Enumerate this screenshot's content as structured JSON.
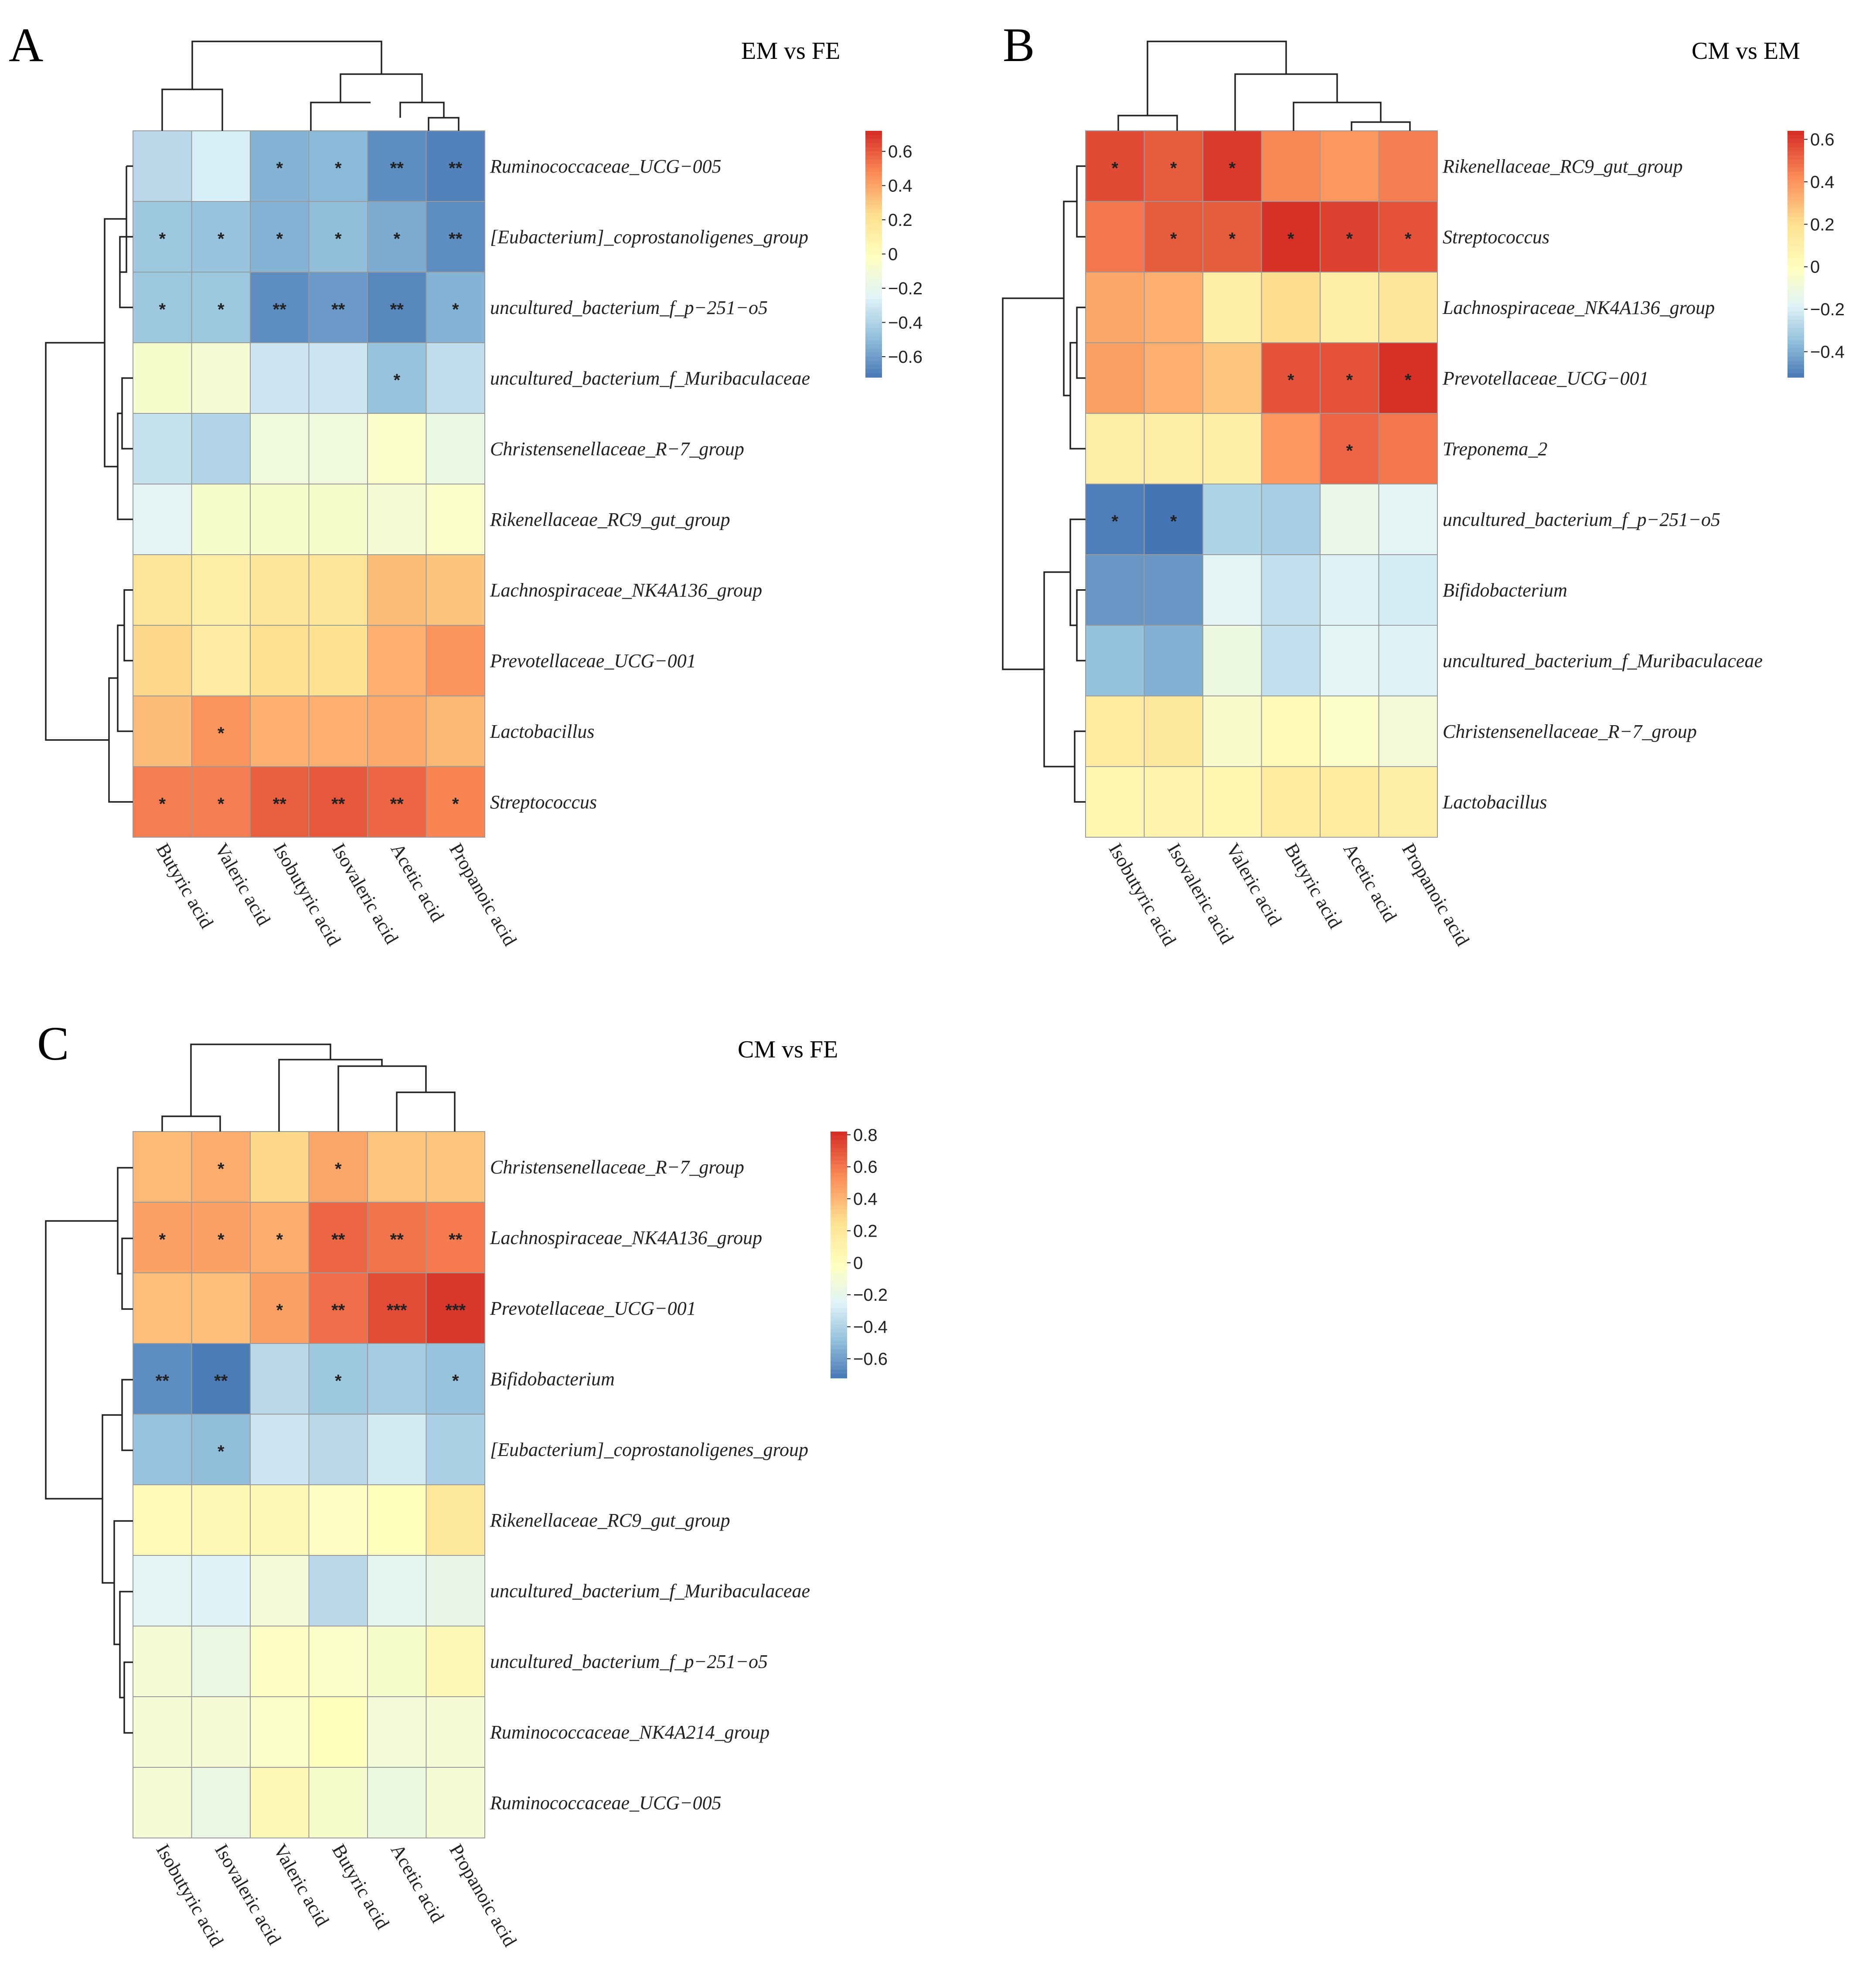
{
  "figure": {
    "colors": {
      "low": "#4575b4",
      "mid": "#ffffbf",
      "high": "#d73027"
    },
    "palette": [
      "#4575b4",
      "#91bfdb",
      "#e0f3f8",
      "#ffffbf",
      "#fee090",
      "#fc8d59",
      "#d73027"
    ]
  },
  "chart_data": [
    {
      "type": "heatmap",
      "panel": "A",
      "title": "EM vs FE",
      "rows": [
        "Ruminococcaceae_UCG−005",
        "[Eubacterium]_coprostanoligenes_group",
        "uncultured_bacterium_f_p−251−o5",
        "uncultured_bacterium_f_Muribaculaceae",
        "Christensenellaceae_R−7_group",
        "Rikenellaceae_RC9_gut_group",
        "Lachnospiraceae_NK4A136_group",
        "Prevotellaceae_UCG−001",
        "Lactobacillus",
        "Streptococcus"
      ],
      "columns": [
        "Butyric acid",
        "Valeric acid",
        "Isobutyric acid",
        "Isovaleric acid",
        "Acetic acid",
        "Propanoic acid"
      ],
      "values": [
        [
          -0.36,
          -0.26,
          -0.52,
          -0.5,
          -0.64,
          -0.68
        ],
        [
          -0.44,
          -0.46,
          -0.52,
          -0.48,
          -0.54,
          -0.64
        ],
        [
          -0.44,
          -0.44,
          -0.64,
          -0.6,
          -0.66,
          -0.52
        ],
        [
          -0.06,
          -0.08,
          -0.3,
          -0.3,
          -0.46,
          -0.34
        ],
        [
          -0.32,
          -0.38,
          -0.12,
          -0.12,
          -0.04,
          -0.16
        ],
        [
          -0.22,
          -0.06,
          -0.06,
          -0.06,
          -0.08,
          -0.04
        ],
        [
          0.2,
          0.14,
          0.2,
          0.2,
          0.34,
          0.32
        ],
        [
          0.26,
          0.16,
          0.24,
          0.22,
          0.38,
          0.46
        ],
        [
          0.34,
          0.46,
          0.38,
          0.38,
          0.4,
          0.36
        ],
        [
          0.52,
          0.52,
          0.6,
          0.62,
          0.58,
          0.5
        ]
      ],
      "significance": [
        [
          "",
          "",
          "*",
          "*",
          "**",
          "**"
        ],
        [
          "*",
          "*",
          "*",
          "*",
          "*",
          "**"
        ],
        [
          "*",
          "*",
          "**",
          "**",
          "**",
          "*"
        ],
        [
          "",
          "",
          "",
          "",
          "*",
          ""
        ],
        [
          "",
          "",
          "",
          "",
          "",
          ""
        ],
        [
          "",
          "",
          "",
          "",
          "",
          ""
        ],
        [
          "",
          "",
          "",
          "",
          "",
          ""
        ],
        [
          "",
          "",
          "",
          "",
          "",
          ""
        ],
        [
          "",
          "*",
          "",
          "",
          "",
          ""
        ],
        [
          "*",
          "*",
          "**",
          "**",
          "**",
          "*"
        ]
      ],
      "legend": {
        "ticks": [
          "0.6",
          "0.4",
          "0.2",
          "0",
          "−0.2",
          "−0.4",
          "−0.6"
        ],
        "tick_values": [
          0.6,
          0.4,
          0.2,
          0,
          -0.2,
          -0.4,
          -0.6
        ],
        "range": [
          -0.72,
          0.72
        ]
      }
    },
    {
      "type": "heatmap",
      "panel": "B",
      "title": "CM vs EM",
      "rows": [
        "Rikenellaceae_RC9_gut_group",
        "Streptococcus",
        "Lachnospiraceae_NK4A136_group",
        "Prevotellaceae_UCG−001",
        "Treponema_2",
        "uncultured_bacterium_f_p−251−o5",
        "Bifidobacterium",
        "uncultured_bacterium_f_Muribaculaceae",
        "Christensenellaceae_R−7_group",
        "Lactobacillus"
      ],
      "columns": [
        "Isobutyric acid",
        "Isovaleric acid",
        "Valeric acid",
        "Butyric acid",
        "Acetic acid",
        "Propanoic acid"
      ],
      "values": [
        [
          0.58,
          0.54,
          0.62,
          0.44,
          0.4,
          0.46
        ],
        [
          0.48,
          0.54,
          0.54,
          0.64,
          0.6,
          0.56
        ],
        [
          0.36,
          0.34,
          0.12,
          0.22,
          0.12,
          0.18
        ],
        [
          0.38,
          0.34,
          0.28,
          0.56,
          0.56,
          0.64
        ],
        [
          0.12,
          0.12,
          0.12,
          0.4,
          0.52,
          0.48
        ],
        [
          -0.5,
          -0.52,
          -0.28,
          -0.3,
          -0.12,
          -0.16
        ],
        [
          -0.44,
          -0.44,
          -0.16,
          -0.24,
          -0.18,
          -0.2
        ],
        [
          -0.34,
          -0.38,
          -0.1,
          -0.24,
          -0.16,
          -0.18
        ],
        [
          0.14,
          0.16,
          -0.04,
          0.04,
          -0.02,
          -0.08
        ],
        [
          0.06,
          0.08,
          0.06,
          0.14,
          0.14,
          0.12
        ]
      ],
      "significance": [
        [
          "*",
          "*",
          "*",
          "",
          "",
          ""
        ],
        [
          "",
          "*",
          "*",
          "*",
          "*",
          "*"
        ],
        [
          "",
          "",
          "",
          "",
          "",
          ""
        ],
        [
          "",
          "",
          "",
          "*",
          "*",
          "*"
        ],
        [
          "",
          "",
          "",
          "",
          "*",
          ""
        ],
        [
          "*",
          "*",
          "",
          "",
          "",
          ""
        ],
        [
          "",
          "",
          "",
          "",
          "",
          ""
        ],
        [
          "",
          "",
          "",
          "",
          "",
          ""
        ],
        [
          "",
          "",
          "",
          "",
          "",
          ""
        ],
        [
          "",
          "",
          "",
          "",
          "",
          ""
        ]
      ],
      "legend": {
        "ticks": [
          "0.6",
          "0.4",
          "0.2",
          "0",
          "−0.2",
          "−0.4"
        ],
        "tick_values": [
          0.6,
          0.4,
          0.2,
          0,
          -0.2,
          -0.4
        ],
        "range": [
          -0.52,
          0.64
        ]
      }
    },
    {
      "type": "heatmap",
      "panel": "C",
      "title": "CM vs FE",
      "rows": [
        "Christensenellaceae_R−7_group",
        "Lachnospiraceae_NK4A136_group",
        "Prevotellaceae_UCG−001",
        "Bifidobacterium",
        "[Eubacterium]_coprostanoligenes_group",
        "Rikenellaceae_RC9_gut_group",
        "uncultured_bacterium_f_Muribaculaceae",
        "uncultured_bacterium_f_p−251−o5",
        "Ruminococcaceae_NK4A214_group",
        "Ruminococcaceae_UCG−005"
      ],
      "columns": [
        "Isobutyric acid",
        "Isovaleric acid",
        "Valeric acid",
        "Butyric acid",
        "Acetic acid",
        "Propanoic acid"
      ],
      "values": [
        [
          0.4,
          0.44,
          0.3,
          0.46,
          0.36,
          0.36
        ],
        [
          0.48,
          0.48,
          0.44,
          0.66,
          0.62,
          0.6
        ],
        [
          0.38,
          0.38,
          0.48,
          0.64,
          0.74,
          0.8
        ],
        [
          -0.64,
          -0.7,
          -0.36,
          -0.44,
          -0.42,
          -0.46
        ],
        [
          -0.46,
          -0.48,
          -0.3,
          -0.36,
          -0.28,
          -0.4
        ],
        [
          0.04,
          0.06,
          0.06,
          -0.02,
          0.02,
          0.2
        ],
        [
          -0.22,
          -0.24,
          -0.1,
          -0.36,
          -0.2,
          -0.18
        ],
        [
          -0.08,
          -0.16,
          -0.02,
          -0.04,
          -0.06,
          0.06
        ],
        [
          -0.08,
          -0.08,
          -0.04,
          0.02,
          -0.1,
          -0.08
        ],
        [
          -0.08,
          -0.16,
          0.06,
          -0.06,
          -0.14,
          -0.08
        ]
      ],
      "significance": [
        [
          "",
          "*",
          "",
          "*",
          "",
          ""
        ],
        [
          "*",
          "*",
          "*",
          "**",
          "**",
          "**"
        ],
        [
          "",
          "",
          "*",
          "**",
          "***",
          "***"
        ],
        [
          "**",
          "**",
          "",
          "*",
          "",
          "*"
        ],
        [
          "",
          "*",
          "",
          "",
          "",
          ""
        ],
        [
          "",
          "",
          "",
          "",
          "",
          ""
        ],
        [
          "",
          "",
          "",
          "",
          "",
          ""
        ],
        [
          "",
          "",
          "",
          "",
          "",
          ""
        ],
        [
          "",
          "",
          "",
          "",
          "",
          ""
        ],
        [
          "",
          "",
          "",
          "",
          "",
          ""
        ]
      ],
      "legend": {
        "ticks": [
          "0.8",
          "0.6",
          "0.4",
          "0.2",
          "0",
          "−0.2",
          "−0.4",
          "−0.6"
        ],
        "tick_values": [
          0.8,
          0.6,
          0.4,
          0.2,
          0,
          -0.2,
          -0.4,
          -0.6
        ],
        "range": [
          -0.72,
          0.82
        ]
      }
    }
  ]
}
